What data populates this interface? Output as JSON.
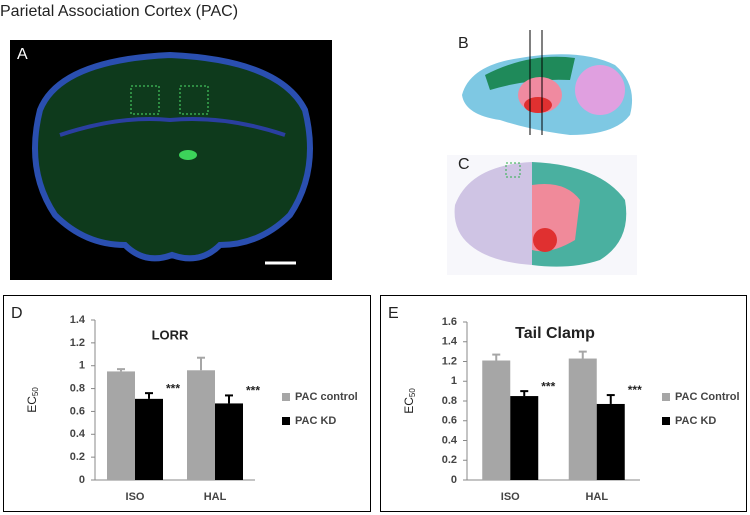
{
  "title": "Parietal Association Cortex (PAC)",
  "panels": [
    "A",
    "B",
    "C"
  ],
  "chart_data": [
    {
      "type": "bar",
      "label": "D",
      "title": "LORR",
      "ylabel": "EC",
      "ylabel_subscript": "50",
      "categories": [
        "ISO",
        "HAL"
      ],
      "series": [
        {
          "name": "PAC control",
          "color": "#a6a6a6",
          "values": [
            0.95,
            0.96
          ],
          "errors": [
            0.02,
            0.11
          ]
        },
        {
          "name": "PAC KD",
          "color": "#000000",
          "values": [
            0.71,
            0.67
          ],
          "errors": [
            0.05,
            0.07
          ],
          "annotations": [
            "***",
            "***"
          ]
        }
      ],
      "ylim": [
        0,
        1.4
      ],
      "yticks": [
        0,
        0.2,
        0.4,
        0.6,
        0.8,
        1,
        1.2,
        1.4
      ],
      "legend": "right"
    },
    {
      "type": "bar",
      "label": "E",
      "title": "Tail Clamp",
      "ylabel": "EC",
      "ylabel_subscript": "50",
      "categories": [
        "ISO",
        "HAL"
      ],
      "series": [
        {
          "name": "PAC Control",
          "color": "#a6a6a6",
          "values": [
            1.21,
            1.23
          ],
          "errors": [
            0.06,
            0.07
          ]
        },
        {
          "name": "PAC KD",
          "color": "#000000",
          "values": [
            0.85,
            0.77
          ],
          "errors": [
            0.05,
            0.09
          ],
          "annotations": [
            "***",
            "***"
          ]
        }
      ],
      "ylim": [
        0,
        1.6
      ],
      "yticks": [
        0,
        0.2,
        0.4,
        0.6,
        0.8,
        1,
        1.2,
        1.4,
        1.6
      ],
      "legend": "right"
    }
  ]
}
